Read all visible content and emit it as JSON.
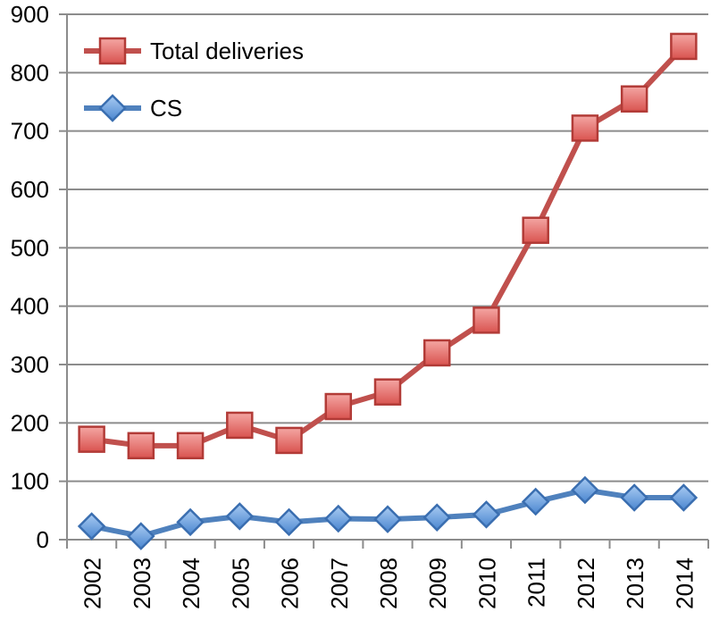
{
  "chart_data": {
    "type": "line",
    "title": "",
    "xlabel": "",
    "ylabel": "",
    "categories": [
      "2002",
      "2003",
      "2004",
      "2005",
      "2006",
      "2007",
      "2008",
      "2009",
      "2010",
      "2011",
      "2012",
      "2013",
      "2014"
    ],
    "ylim": [
      0,
      900
    ],
    "yticks": [
      0,
      100,
      200,
      300,
      400,
      500,
      600,
      700,
      800,
      900
    ],
    "grid": true,
    "legend_position": "top-left",
    "series": [
      {
        "name": "Total deliveries",
        "marker": "square",
        "color": "#C0504D",
        "marker_fill": "#E87C79",
        "values": [
          172,
          161,
          161,
          196,
          170,
          228,
          253,
          320,
          376,
          530,
          705,
          755,
          845
        ]
      },
      {
        "name": "CS",
        "marker": "diamond",
        "color": "#4F81BD",
        "marker_fill": "#6FA3E0",
        "values": [
          23,
          6,
          30,
          40,
          30,
          36,
          35,
          38,
          43,
          65,
          85,
          72,
          72
        ]
      }
    ]
  }
}
